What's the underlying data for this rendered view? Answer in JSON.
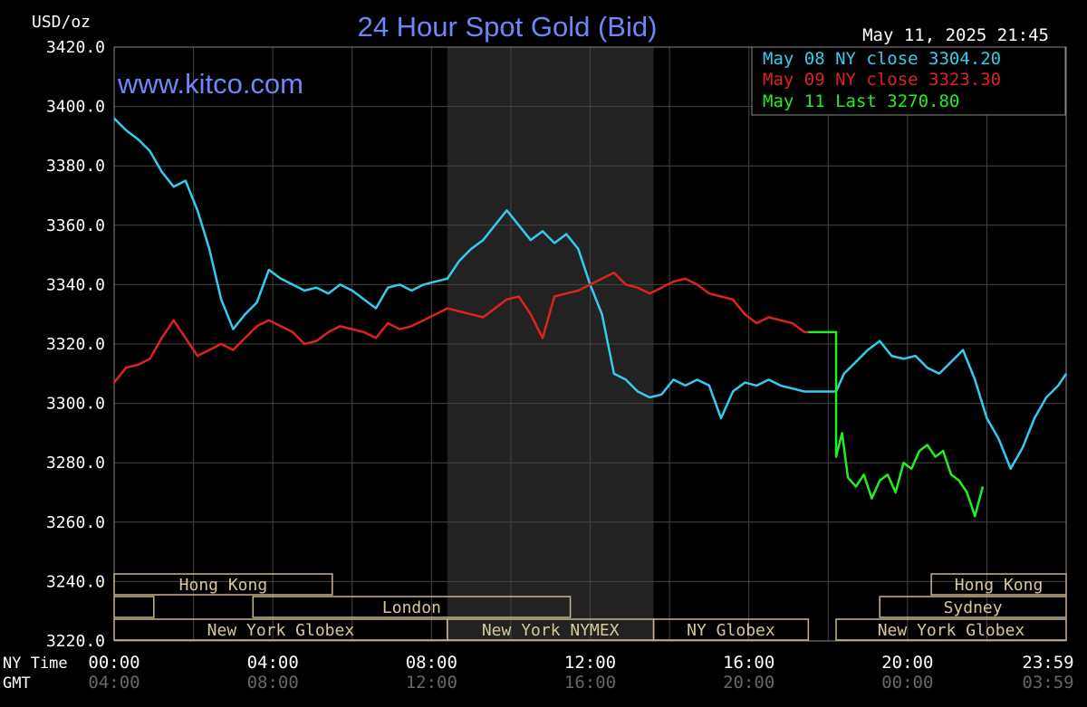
{
  "chart_data": {
    "type": "line",
    "title": "24 Hour Spot Gold (Bid)",
    "watermark": "www.kitco.com",
    "ylabel": "USD/oz",
    "timestamp": "May 11, 2025 21:45",
    "ylim": [
      3220,
      3420
    ],
    "xlim": [
      0,
      24
    ],
    "y_ticks": [
      "3420.0",
      "3400.0",
      "3380.0",
      "3360.0",
      "3340.0",
      "3320.0",
      "3300.0",
      "3280.0",
      "3260.0",
      "3240.0",
      "3220.0"
    ],
    "x_row_labels": [
      "NY Time",
      "GMT"
    ],
    "x_ticks_ny": [
      "00:00",
      "04:00",
      "08:00",
      "12:00",
      "16:00",
      "20:00",
      "23:59"
    ],
    "x_ticks_gmt": [
      "04:00",
      "08:00",
      "12:00",
      "16:00",
      "20:00",
      "00:00",
      "03:59"
    ],
    "grid": true,
    "legend_position": "top-right",
    "shaded_region": {
      "from": 8.4,
      "to": 13.6,
      "color": "#222222"
    },
    "sessions": [
      {
        "label": "Hong Kong",
        "row": 0,
        "start": 0,
        "end": 5.5
      },
      {
        "label": "",
        "row": 1,
        "start": 0,
        "end": 1
      },
      {
        "label": "London",
        "row": 1,
        "start": 3.5,
        "end": 11.5
      },
      {
        "label": "New York Globex",
        "row": 2,
        "start": 0,
        "end": 8.4
      },
      {
        "label": "New York NYMEX",
        "row": 2,
        "start": 8.4,
        "end": 13.6
      },
      {
        "label": "NY Globex",
        "row": 2,
        "start": 13.6,
        "end": 17.5
      },
      {
        "label": "Hong Kong",
        "row": 0,
        "start": 20.6,
        "end": 24
      },
      {
        "label": "Sydney",
        "row": 1,
        "start": 19.3,
        "end": 24
      },
      {
        "label": "New York Globex",
        "row": 2,
        "start": 18.2,
        "end": 24
      }
    ],
    "series": [
      {
        "name": "May 08 NY close 3304.20",
        "color": "#33CCEE",
        "x": [
          0,
          0.3,
          0.6,
          0.9,
          1.2,
          1.5,
          1.8,
          2.1,
          2.4,
          2.7,
          3.0,
          3.3,
          3.6,
          3.9,
          4.2,
          4.5,
          4.8,
          5.1,
          5.4,
          5.7,
          6.0,
          6.3,
          6.6,
          6.9,
          7.2,
          7.5,
          7.8,
          8.1,
          8.4,
          8.7,
          9.0,
          9.3,
          9.6,
          9.9,
          10.2,
          10.5,
          10.8,
          11.1,
          11.4,
          11.7,
          12.0,
          12.3,
          12.6,
          12.9,
          13.2,
          13.5,
          13.8,
          14.1,
          14.4,
          14.7,
          15.0,
          15.3,
          15.6,
          15.9,
          16.2,
          16.5,
          16.8,
          17.1,
          17.4,
          17.5,
          18.2,
          18.4,
          18.7,
          19.0,
          19.3,
          19.6,
          19.9,
          20.2,
          20.5,
          20.8,
          21.1,
          21.4,
          21.7,
          22.0,
          22.3,
          22.6,
          22.9,
          23.2,
          23.5,
          23.8,
          24.0
        ],
        "y": [
          3396,
          3392,
          3389,
          3385,
          3378,
          3373,
          3375,
          3365,
          3352,
          3335,
          3325,
          3330,
          3334,
          3345,
          3342,
          3340,
          3338,
          3339,
          3337,
          3340,
          3338,
          3335,
          3332,
          3339,
          3340,
          3338,
          3340,
          3341,
          3342,
          3348,
          3352,
          3355,
          3360,
          3365,
          3360,
          3355,
          3358,
          3354,
          3357,
          3352,
          3340,
          3330,
          3310,
          3308,
          3304,
          3302,
          3303,
          3308,
          3306,
          3308,
          3306,
          3295,
          3304,
          3307,
          3306,
          3308,
          3306,
          3305,
          3304,
          3304,
          3304,
          3310,
          3314,
          3318,
          3321,
          3316,
          3315,
          3316,
          3312,
          3310,
          3314,
          3318,
          3308,
          3295,
          3288,
          3278,
          3285,
          3295,
          3302,
          3306,
          3310
        ]
      },
      {
        "name": "May 09 NY close 3323.30",
        "color": "#DD2222",
        "x": [
          0,
          0.3,
          0.6,
          0.9,
          1.2,
          1.5,
          1.8,
          2.1,
          2.4,
          2.7,
          3.0,
          3.3,
          3.6,
          3.9,
          4.2,
          4.5,
          4.8,
          5.1,
          5.4,
          5.7,
          6.0,
          6.3,
          6.6,
          6.9,
          7.2,
          7.5,
          7.8,
          8.1,
          8.4,
          8.7,
          9.0,
          9.3,
          9.6,
          9.9,
          10.2,
          10.5,
          10.8,
          11.1,
          11.4,
          11.7,
          12.0,
          12.3,
          12.6,
          12.9,
          13.2,
          13.5,
          13.8,
          14.1,
          14.4,
          14.7,
          15.0,
          15.3,
          15.6,
          15.9,
          16.2,
          16.5,
          16.8,
          17.1,
          17.4,
          17.5
        ],
        "y": [
          3307,
          3312,
          3313,
          3315,
          3322,
          3328,
          3322,
          3316,
          3318,
          3320,
          3318,
          3322,
          3326,
          3328,
          3326,
          3324,
          3320,
          3321,
          3324,
          3326,
          3325,
          3324,
          3322,
          3327,
          3325,
          3326,
          3328,
          3330,
          3332,
          3331,
          3330,
          3329,
          3332,
          3335,
          3336,
          3330,
          3322,
          3336,
          3337,
          3338,
          3340,
          3342,
          3344,
          3340,
          3339,
          3337,
          3339,
          3341,
          3342,
          3340,
          3337,
          3336,
          3335,
          3330,
          3327,
          3329,
          3328,
          3327,
          3324,
          3324
        ]
      },
      {
        "name": "May 11 Last 3270.80",
        "color": "#22EE22",
        "x": [
          17.5,
          18.2,
          18.2,
          18.35,
          18.5,
          18.7,
          18.9,
          19.1,
          19.3,
          19.5,
          19.7,
          19.9,
          20.1,
          20.3,
          20.5,
          20.7,
          20.9,
          21.1,
          21.3,
          21.5,
          21.7,
          21.9
        ],
        "y": [
          3324,
          3324,
          3282,
          3290,
          3275,
          3272,
          3276,
          3268,
          3274,
          3276,
          3270,
          3280,
          3278,
          3284,
          3286,
          3282,
          3284,
          3276,
          3274,
          3270,
          3262,
          3272
        ]
      }
    ]
  }
}
